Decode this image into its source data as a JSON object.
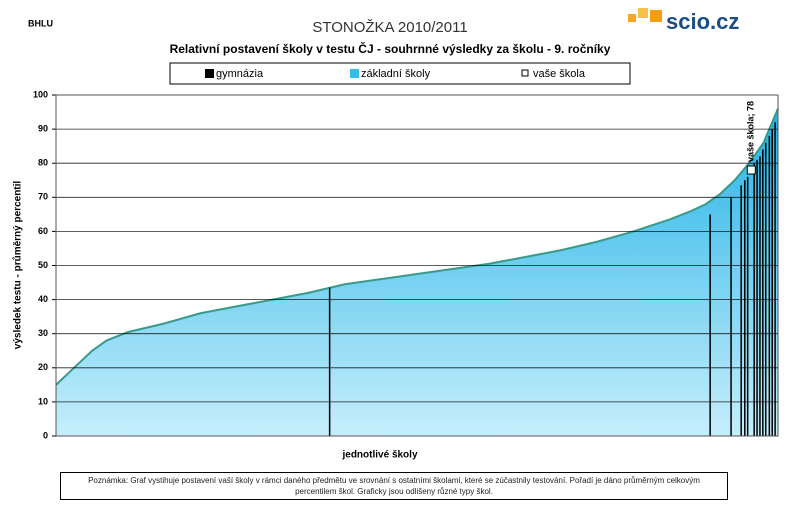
{
  "code": "BHLU",
  "logo": "scio.cz",
  "note": "Poznámka: Graf vystihuje postavení vaší školy v rámci daného předmětu ve srovnání s ostatními školami, které se zúčastnily testování. Pořadí je dáno průměrným celkovým percentilem škol. Graficky jsou odlišeny různé typy škol.",
  "chart_data": {
    "type": "area",
    "title": "STONOŽKA 2010/2011",
    "subtitle": "Relativní postavení školy v testu ČJ - souhrnné výsledky za školu - 9. ročníky",
    "ylabel": "výsledek testu - průměrný percentil",
    "xlabel": "jednotlivé školy",
    "xlim": [
      0,
      100
    ],
    "ylim": [
      0,
      100
    ],
    "yticks": [
      0,
      10,
      20,
      30,
      40,
      50,
      60,
      70,
      80,
      90,
      100
    ],
    "grid": true,
    "x": [
      0,
      2,
      5,
      7,
      10,
      15,
      20,
      25,
      30,
      35,
      40,
      45,
      50,
      55,
      60,
      65,
      70,
      75,
      80,
      85,
      88,
      90,
      92,
      94,
      96,
      98,
      100
    ],
    "series": [
      {
        "name": "základní školy",
        "color": "#35bdea",
        "line_color": "#3a9a88",
        "values": [
          15,
          19,
          25,
          28,
          30.5,
          33,
          36,
          38,
          40,
          42,
          44.5,
          46,
          47.5,
          49,
          50.5,
          52.5,
          54.5,
          57,
          60,
          63.5,
          66,
          68,
          71,
          75,
          80,
          86,
          96
        ]
      }
    ],
    "gymnazia": {
      "name": "gymnázia",
      "color": "#000000",
      "x": [
        37.9,
        90.6,
        93.5,
        94.9,
        95.4,
        95.8,
        96.7,
        97.1,
        97.5,
        97.9,
        98.3,
        98.8,
        99.2,
        99.6
      ],
      "values": [
        43.5,
        65,
        70,
        73.5,
        75,
        76,
        80,
        81,
        82,
        84,
        86,
        88,
        90,
        92
      ]
    },
    "your_school": {
      "name": "vaše škola",
      "x": 96.3,
      "value": 78,
      "value_label": "vaše škola; 78"
    }
  }
}
